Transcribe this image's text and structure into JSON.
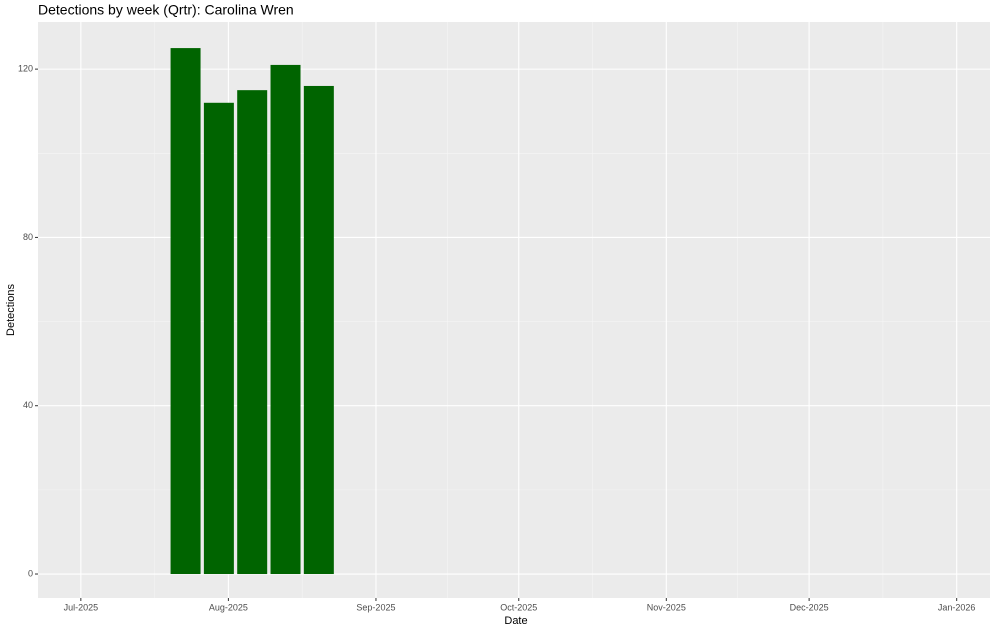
{
  "chart_data": {
    "type": "bar",
    "title": "Detections by week (Qrtr): Carolina Wren",
    "x_label": "Date",
    "y_label": "Detections",
    "x": [
      "2025-07-23",
      "2025-07-30",
      "2025-08-06",
      "2025-08-13",
      "2025-08-20"
    ],
    "values": [
      125,
      112,
      115,
      121,
      116
    ],
    "color": "#006400",
    "xlim": [
      "2025-06-22",
      "2026-01-08"
    ],
    "xticks": [
      {
        "value": "2025-07-01",
        "label": "Jul-2025"
      },
      {
        "value": "2025-08-01",
        "label": "Aug-2025"
      },
      {
        "value": "2025-09-01",
        "label": "Sep-2025"
      },
      {
        "value": "2025-10-01",
        "label": "Oct-2025"
      },
      {
        "value": "2025-11-01",
        "label": "Nov-2025"
      },
      {
        "value": "2025-12-01",
        "label": "Dec-2025"
      },
      {
        "value": "2026-01-01",
        "label": "Jan-2026"
      }
    ],
    "ylim": [
      -5.7,
      131.2
    ],
    "yticks": [
      0,
      40,
      80,
      120
    ],
    "grid": true
  }
}
